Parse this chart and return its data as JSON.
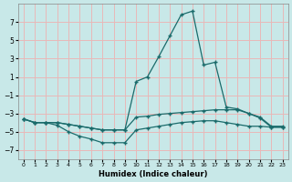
{
  "xlabel": "Humidex (Indice chaleur)",
  "x": [
    0,
    1,
    2,
    3,
    4,
    5,
    6,
    7,
    8,
    9,
    10,
    11,
    12,
    13,
    14,
    15,
    16,
    17,
    18,
    19,
    20,
    21,
    22,
    23
  ],
  "line_peak": [
    -3.6,
    -4.0,
    -4.0,
    -4.0,
    -4.2,
    -4.4,
    -4.6,
    -4.8,
    -4.8,
    -4.8,
    0.5,
    1.0,
    3.2,
    5.5,
    7.8,
    8.2,
    2.3,
    2.6,
    -2.3,
    -2.5,
    -3.0,
    -3.5,
    -4.5,
    -4.5
  ],
  "line_flat": [
    -3.6,
    -4.0,
    -4.0,
    -4.0,
    -4.2,
    -4.4,
    -4.6,
    -4.8,
    -4.8,
    -4.8,
    -3.4,
    -3.3,
    -3.1,
    -3.0,
    -2.9,
    -2.8,
    -2.7,
    -2.6,
    -2.6,
    -2.6,
    -3.0,
    -3.4,
    -4.4,
    -4.4
  ],
  "line_lower": [
    -3.6,
    -4.0,
    -4.0,
    -4.3,
    -5.0,
    -5.5,
    -5.8,
    -6.2,
    -6.2,
    -6.2,
    -4.8,
    -4.6,
    -4.4,
    -4.2,
    -4.0,
    -3.9,
    -3.8,
    -3.8,
    -4.0,
    -4.2,
    -4.4,
    -4.4,
    -4.5,
    -4.5
  ],
  "bg_color": "#c8e8e8",
  "grid_color": "#e8b8b8",
  "line_color": "#1a6b6b",
  "ylim": [
    -8,
    9
  ],
  "xlim": [
    -0.5,
    23.5
  ],
  "yticks": [
    -7,
    -5,
    -3,
    -1,
    1,
    3,
    5,
    7
  ],
  "xticks": [
    0,
    1,
    2,
    3,
    4,
    5,
    6,
    7,
    8,
    9,
    10,
    11,
    12,
    13,
    14,
    15,
    16,
    17,
    18,
    19,
    20,
    21,
    22,
    23
  ]
}
